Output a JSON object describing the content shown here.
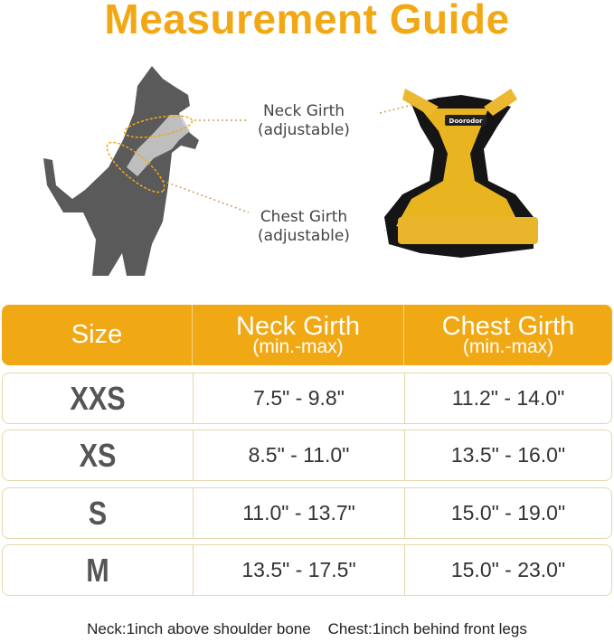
{
  "title": "Measurement Guide",
  "labels": {
    "neck": "Neck Girth",
    "neck_sub": "(adjustable)",
    "chest": "Chest Girth",
    "chest_sub": "(adjustable)"
  },
  "brand_logo": "Doorodor",
  "colors": {
    "accent": "#F1A815",
    "row_border": "#E6D6A8"
  },
  "table": {
    "headers": [
      {
        "title": "Size",
        "sub": ""
      },
      {
        "title": "Neck Girth",
        "sub": "(min.-max)"
      },
      {
        "title": "Chest Girth",
        "sub": "(min.-max)"
      }
    ],
    "rows": [
      {
        "size": "XXS",
        "neck": "7.5\" - 9.8\"",
        "chest": "11.2\" - 14.0\""
      },
      {
        "size": "XS",
        "neck": "8.5\" - 11.0\"",
        "chest": "13.5\" - 16.0\""
      },
      {
        "size": "S",
        "neck": "11.0\" - 13.7\"",
        "chest": "15.0\" - 19.0\""
      },
      {
        "size": "M",
        "neck": "13.5\" - 17.5\"",
        "chest": "15.0\" - 23.0\""
      }
    ]
  },
  "footnote": "Neck:1inch above shoulder bone    Chest:1inch behind front legs"
}
